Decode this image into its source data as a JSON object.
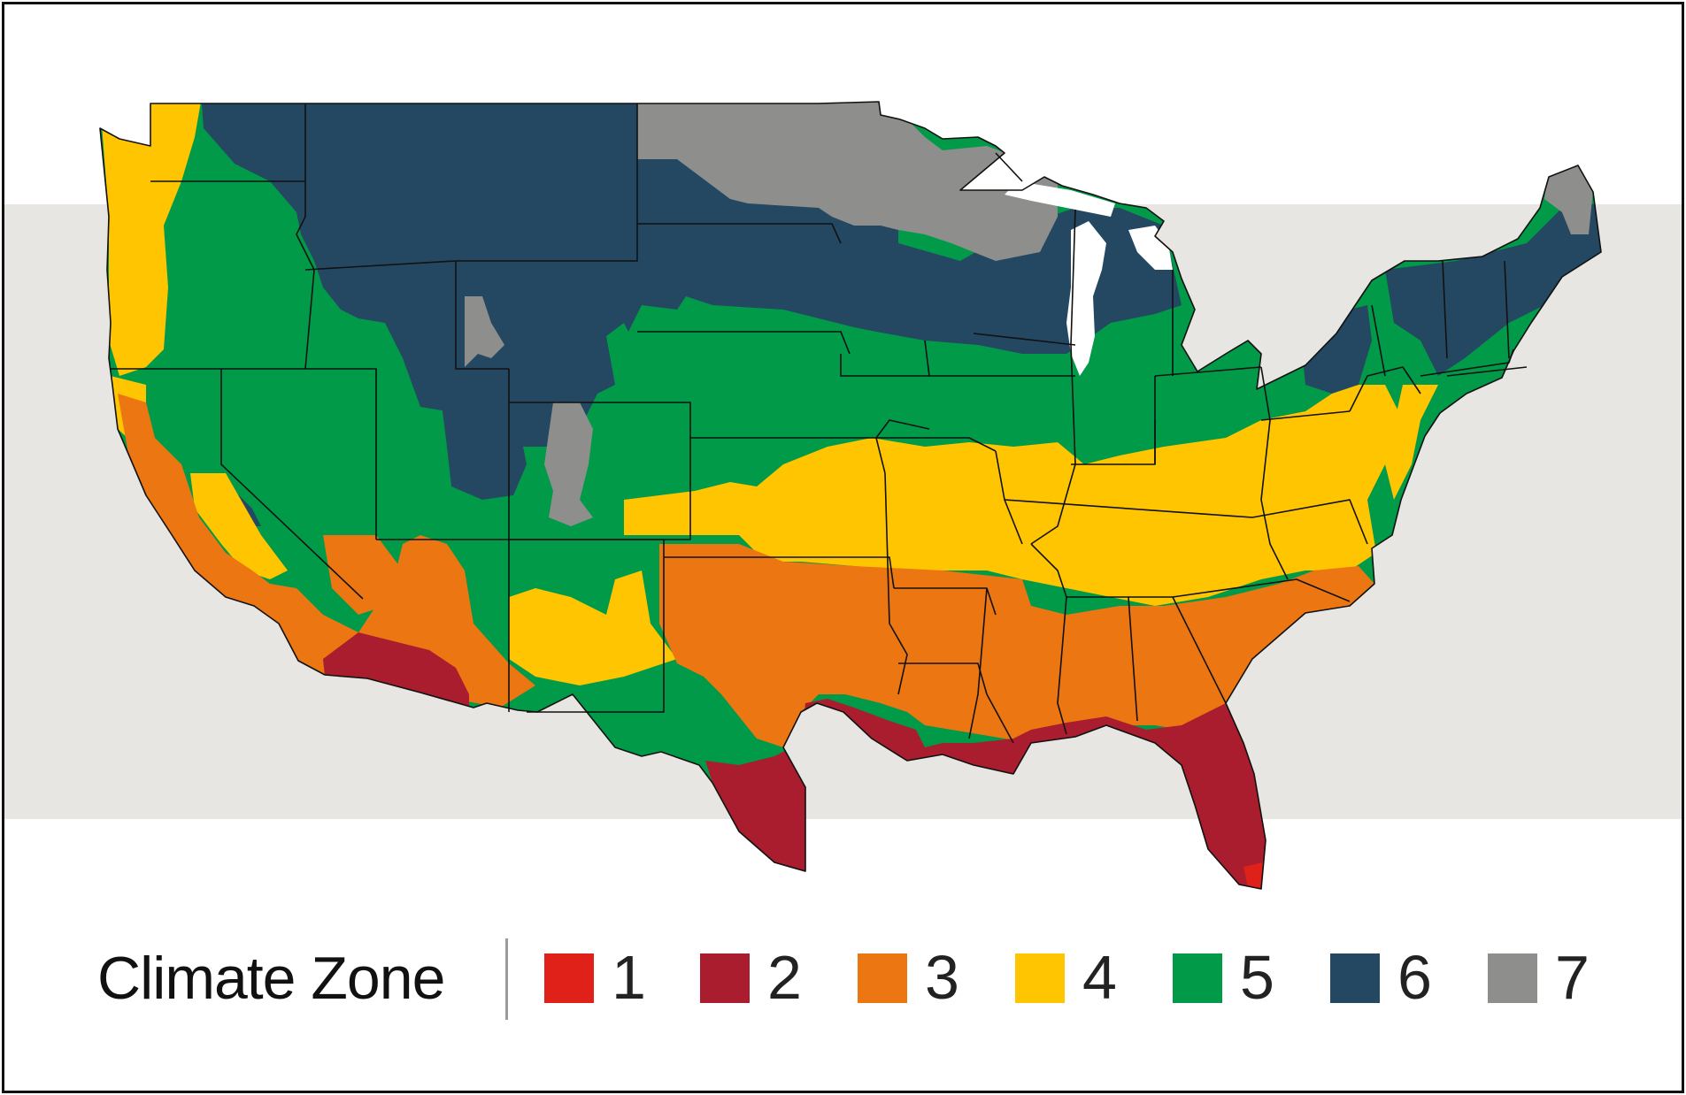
{
  "legend": {
    "title": "Climate Zone",
    "zones": [
      {
        "label": "1",
        "color": "#e0211a"
      },
      {
        "label": "2",
        "color": "#a91d2e"
      },
      {
        "label": "3",
        "color": "#ec7611"
      },
      {
        "label": "4",
        "color": "#fec500"
      },
      {
        "label": "5",
        "color": "#009a49"
      },
      {
        "label": "6",
        "color": "#244862"
      },
      {
        "label": "7",
        "color": "#8e8f8c"
      }
    ]
  },
  "map": {
    "subject": "contiguous-united-states",
    "state_border_color": "#111111"
  }
}
